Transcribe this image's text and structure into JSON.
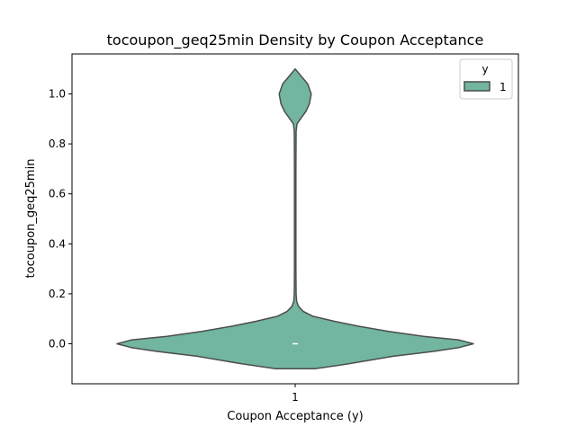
{
  "chart_data": {
    "type": "violin",
    "title": "tocoupon_geq25min Density by Coupon Acceptance",
    "xlabel": "Coupon Acceptance (y)",
    "ylabel": "tocoupon_geq25min",
    "categories": [
      "1"
    ],
    "yticks": [
      "0.0",
      "0.2",
      "0.4",
      "0.6",
      "0.8",
      "1.0"
    ],
    "ylim": [
      -0.16,
      1.16
    ],
    "legend": {
      "title": "y",
      "entries": [
        "1"
      ],
      "placement": "top-right"
    },
    "grid": false,
    "series": [
      {
        "name": "1",
        "color": "#72b5a0",
        "edge_color": "#4d4d4d",
        "density": {
          "y": [
            -0.1,
            -0.08,
            -0.05,
            -0.03,
            -0.015,
            0.0,
            0.015,
            0.03,
            0.05,
            0.07,
            0.09,
            0.11,
            0.13,
            0.15,
            0.17,
            0.2,
            0.3,
            0.5,
            0.7,
            0.85,
            0.88,
            0.9,
            0.93,
            0.96,
            1.0,
            1.04,
            1.07,
            1.1
          ],
          "width": [
            0.11,
            0.3,
            0.55,
            0.78,
            0.92,
            1.0,
            0.92,
            0.72,
            0.52,
            0.36,
            0.22,
            0.1,
            0.045,
            0.018,
            0.008,
            0.005,
            0.004,
            0.004,
            0.004,
            0.005,
            0.01,
            0.03,
            0.06,
            0.08,
            0.09,
            0.07,
            0.035,
            0.0
          ]
        },
        "median": 0.0
      }
    ]
  }
}
